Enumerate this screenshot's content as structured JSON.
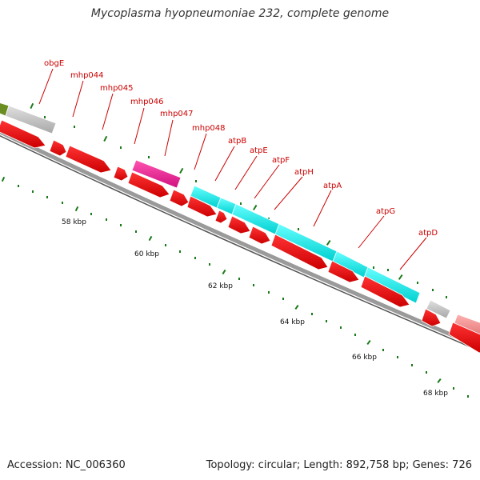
{
  "title": "Mycoplasma hyopneumoniae 232, complete genome",
  "footer": {
    "accession": "Accession: NC_006360",
    "summary": "Topology: circular; Length: 892,758 bp; Genes: 726"
  },
  "gene_labels": [
    "obgE",
    "mhp044",
    "mhp045",
    "mhp046",
    "mhp047",
    "mhp048",
    "atpB",
    "atpE",
    "atpF",
    "atpH",
    "atpA",
    "atpG",
    "atpD"
  ],
  "ruler_labels": [
    "58 kbp",
    "60 kbp",
    "62 kbp",
    "64 kbp",
    "66 kbp",
    "68 kbp"
  ],
  "colors": {
    "label": "#cc0000",
    "cds": "#ff0000",
    "atp_operon": "#00ffff",
    "highlight": "#ff1493",
    "other": "#c8c8c8",
    "green_feature": "#6b8e23",
    "pink_feature": "#f08080",
    "backbone": "#808080",
    "ticks": "#006400"
  }
}
